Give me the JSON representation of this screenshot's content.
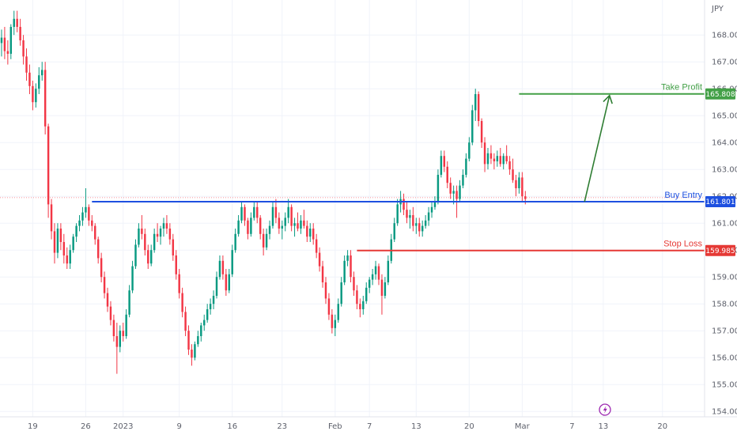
{
  "chart_data": {
    "type": "candlestick",
    "currency": "JPY",
    "ylim": [
      153.8,
      169.3
    ],
    "y_ticks": [
      154,
      155,
      156,
      157,
      158,
      159,
      160,
      161,
      162,
      163,
      164,
      165,
      166,
      167,
      168
    ],
    "y_tick_labels": [
      "154.000",
      "155.000",
      "156.000",
      "157.000",
      "158.000",
      "159.000",
      "160.000",
      "161.000",
      "162.000",
      "163.000",
      "164.000",
      "165.000",
      "166.000",
      "167.000",
      "168.000"
    ],
    "x_tick_labels": [
      "19",
      "26",
      "2023",
      "9",
      "16",
      "23",
      "Feb",
      "7",
      "13",
      "20",
      "Mar",
      "7",
      "13",
      "20"
    ],
    "x_tick_index": [
      10,
      27,
      39,
      57,
      74,
      90,
      107,
      118,
      133,
      150,
      167,
      183,
      193,
      212
    ],
    "x_slots": 226,
    "up_color": "#089981",
    "down_color": "#f23645",
    "candles": [
      [
        167.7,
        168.2,
        167.2,
        167.9
      ],
      [
        167.9,
        168.3,
        167.1,
        167.4
      ],
      [
        167.4,
        167.8,
        166.9,
        167.3
      ],
      [
        167.3,
        168.4,
        167.1,
        168.3
      ],
      [
        168.3,
        168.9,
        168.0,
        168.6
      ],
      [
        168.6,
        168.9,
        168.1,
        168.3
      ],
      [
        168.3,
        168.6,
        167.6,
        167.8
      ],
      [
        167.8,
        168.0,
        166.9,
        167.2
      ],
      [
        167.2,
        167.5,
        166.3,
        166.6
      ],
      [
        166.6,
        166.9,
        165.8,
        166.1
      ],
      [
        166.1,
        166.3,
        165.2,
        165.5
      ],
      [
        165.5,
        166.2,
        165.3,
        166.0
      ],
      [
        166.0,
        166.8,
        165.8,
        166.5
      ],
      [
        166.5,
        167.0,
        166.3,
        166.7
      ],
      [
        166.7,
        167.0,
        164.3,
        164.6
      ],
      [
        164.6,
        164.7,
        161.2,
        161.7
      ],
      [
        161.7,
        161.9,
        160.4,
        160.7
      ],
      [
        160.7,
        161.0,
        159.5,
        159.9
      ],
      [
        159.9,
        161.0,
        159.7,
        160.8
      ],
      [
        160.8,
        161.0,
        160.0,
        160.3
      ],
      [
        160.3,
        160.6,
        159.5,
        159.8
      ],
      [
        159.8,
        160.1,
        159.3,
        159.5
      ],
      [
        159.5,
        160.2,
        159.3,
        160.0
      ],
      [
        160.0,
        160.6,
        159.9,
        160.5
      ],
      [
        160.5,
        161.0,
        160.3,
        160.9
      ],
      [
        160.9,
        161.3,
        160.7,
        161.1
      ],
      [
        161.1,
        161.6,
        160.9,
        161.4
      ],
      [
        161.4,
        162.3,
        161.2,
        161.6
      ],
      [
        161.6,
        161.7,
        160.9,
        161.1
      ],
      [
        161.1,
        161.3,
        160.7,
        160.9
      ],
      [
        160.9,
        161.0,
        160.2,
        160.4
      ],
      [
        160.4,
        160.5,
        159.5,
        159.7
      ],
      [
        159.7,
        159.9,
        158.8,
        159.0
      ],
      [
        159.0,
        159.2,
        158.2,
        158.4
      ],
      [
        158.4,
        158.6,
        157.7,
        157.9
      ],
      [
        157.9,
        158.1,
        157.2,
        157.4
      ],
      [
        157.4,
        157.6,
        156.6,
        156.8
      ],
      [
        156.8,
        157.3,
        155.4,
        156.4
      ],
      [
        156.4,
        157.2,
        156.2,
        157.0
      ],
      [
        157.0,
        157.3,
        156.6,
        156.8
      ],
      [
        156.8,
        157.8,
        156.7,
        157.6
      ],
      [
        157.6,
        158.7,
        157.5,
        158.5
      ],
      [
        158.5,
        159.6,
        158.4,
        159.4
      ],
      [
        159.4,
        160.4,
        159.3,
        160.2
      ],
      [
        160.2,
        161.0,
        160.1,
        160.8
      ],
      [
        160.8,
        161.3,
        160.4,
        160.6
      ],
      [
        160.6,
        160.8,
        159.8,
        160.0
      ],
      [
        160.0,
        160.2,
        159.3,
        159.5
      ],
      [
        159.5,
        160.2,
        159.4,
        160.0
      ],
      [
        160.0,
        160.8,
        159.9,
        160.6
      ],
      [
        160.6,
        161.0,
        160.3,
        160.5
      ],
      [
        160.5,
        160.9,
        160.2,
        160.8
      ],
      [
        160.8,
        161.2,
        160.5,
        161.0
      ],
      [
        161.0,
        161.3,
        160.6,
        160.8
      ],
      [
        160.8,
        161.0,
        160.2,
        160.4
      ],
      [
        160.4,
        160.6,
        159.6,
        159.8
      ],
      [
        159.8,
        160.0,
        158.9,
        159.1
      ],
      [
        159.1,
        159.3,
        158.2,
        158.4
      ],
      [
        158.4,
        158.6,
        157.5,
        157.7
      ],
      [
        157.7,
        157.9,
        156.8,
        157.0
      ],
      [
        157.0,
        157.2,
        156.1,
        156.3
      ],
      [
        156.3,
        156.5,
        155.7,
        156.0
      ],
      [
        156.0,
        156.6,
        155.9,
        156.5
      ],
      [
        156.5,
        157.0,
        156.4,
        156.8
      ],
      [
        156.8,
        157.3,
        156.6,
        157.2
      ],
      [
        157.2,
        157.6,
        157.0,
        157.4
      ],
      [
        157.4,
        158.0,
        157.3,
        157.8
      ],
      [
        157.8,
        158.2,
        157.6,
        158.0
      ],
      [
        158.0,
        158.5,
        157.8,
        158.3
      ],
      [
        158.3,
        159.2,
        158.2,
        159.0
      ],
      [
        159.0,
        159.8,
        158.9,
        159.6
      ],
      [
        159.6,
        159.8,
        158.9,
        159.1
      ],
      [
        159.1,
        159.3,
        158.3,
        158.5
      ],
      [
        158.5,
        159.3,
        158.4,
        159.1
      ],
      [
        159.1,
        160.2,
        159.0,
        160.0
      ],
      [
        160.0,
        160.8,
        159.9,
        160.6
      ],
      [
        160.6,
        161.3,
        160.5,
        161.1
      ],
      [
        161.1,
        161.8,
        161.0,
        161.6
      ],
      [
        161.6,
        161.7,
        160.9,
        161.1
      ],
      [
        161.1,
        161.2,
        160.4,
        160.6
      ],
      [
        160.6,
        161.4,
        160.5,
        161.2
      ],
      [
        161.2,
        161.8,
        161.1,
        161.6
      ],
      [
        161.6,
        161.8,
        161.0,
        161.2
      ],
      [
        161.2,
        161.3,
        160.4,
        160.6
      ],
      [
        160.6,
        160.8,
        159.8,
        160.1
      ],
      [
        160.1,
        160.8,
        160.0,
        160.6
      ],
      [
        160.6,
        161.1,
        160.4,
        160.9
      ],
      [
        160.9,
        161.8,
        160.8,
        161.6
      ],
      [
        161.6,
        161.9,
        161.0,
        161.2
      ],
      [
        161.2,
        161.4,
        160.6,
        160.8
      ],
      [
        160.8,
        161.1,
        160.4,
        160.9
      ],
      [
        160.9,
        161.4,
        160.7,
        161.2
      ],
      [
        161.2,
        161.9,
        161.0,
        161.6
      ],
      [
        161.6,
        161.7,
        160.7,
        160.9
      ],
      [
        160.9,
        161.2,
        160.5,
        161.0
      ],
      [
        161.0,
        161.4,
        160.7,
        160.8
      ],
      [
        160.8,
        161.3,
        160.6,
        161.1
      ],
      [
        161.1,
        161.5,
        160.8,
        160.9
      ],
      [
        160.9,
        161.1,
        160.3,
        160.5
      ],
      [
        160.5,
        161.0,
        160.3,
        160.8
      ],
      [
        160.8,
        161.0,
        160.2,
        160.4
      ],
      [
        160.4,
        160.6,
        159.7,
        159.9
      ],
      [
        159.9,
        160.1,
        159.2,
        159.4
      ],
      [
        159.4,
        159.6,
        158.6,
        158.8
      ],
      [
        158.8,
        159.0,
        158.0,
        158.2
      ],
      [
        158.2,
        158.4,
        157.4,
        157.6
      ],
      [
        157.6,
        157.8,
        156.9,
        157.1
      ],
      [
        157.1,
        157.6,
        156.8,
        157.4
      ],
      [
        157.4,
        158.2,
        157.3,
        158.0
      ],
      [
        158.0,
        159.0,
        157.9,
        158.8
      ],
      [
        158.8,
        159.8,
        158.7,
        159.6
      ],
      [
        159.6,
        160.0,
        159.4,
        159.8
      ],
      [
        159.8,
        160.0,
        158.8,
        159.0
      ],
      [
        159.0,
        159.2,
        158.3,
        158.5
      ],
      [
        158.5,
        158.7,
        157.8,
        158.0
      ],
      [
        158.0,
        158.2,
        157.5,
        157.8
      ],
      [
        157.8,
        158.3,
        157.6,
        158.1
      ],
      [
        158.1,
        158.8,
        158.0,
        158.6
      ],
      [
        158.6,
        159.0,
        158.4,
        158.9
      ],
      [
        158.9,
        159.3,
        158.7,
        159.1
      ],
      [
        159.1,
        159.6,
        158.9,
        159.4
      ],
      [
        159.4,
        159.5,
        158.7,
        158.9
      ],
      [
        158.9,
        159.1,
        157.6,
        158.3
      ],
      [
        158.3,
        159.0,
        158.2,
        158.8
      ],
      [
        158.8,
        159.8,
        158.7,
        159.6
      ],
      [
        159.6,
        160.6,
        159.5,
        160.4
      ],
      [
        160.4,
        161.2,
        160.3,
        161.0
      ],
      [
        161.0,
        161.9,
        160.9,
        161.7
      ],
      [
        161.7,
        162.2,
        161.4,
        161.9
      ],
      [
        161.9,
        162.1,
        161.3,
        161.5
      ],
      [
        161.5,
        161.8,
        161.0,
        161.2
      ],
      [
        161.2,
        161.5,
        160.8,
        161.3
      ],
      [
        161.3,
        161.6,
        160.7,
        160.9
      ],
      [
        160.9,
        161.2,
        160.6,
        161.0
      ],
      [
        161.0,
        161.2,
        160.5,
        160.7
      ],
      [
        160.7,
        161.1,
        160.5,
        160.9
      ],
      [
        160.9,
        161.3,
        160.8,
        161.1
      ],
      [
        161.1,
        161.6,
        160.9,
        161.4
      ],
      [
        161.4,
        161.8,
        161.2,
        161.6
      ],
      [
        161.6,
        162.0,
        161.5,
        161.8
      ],
      [
        161.8,
        163.0,
        161.7,
        162.8
      ],
      [
        162.8,
        163.7,
        162.7,
        163.5
      ],
      [
        163.5,
        163.7,
        162.9,
        163.1
      ],
      [
        163.1,
        163.3,
        162.3,
        162.5
      ],
      [
        162.5,
        162.7,
        161.9,
        162.1
      ],
      [
        162.1,
        162.4,
        161.7,
        162.2
      ],
      [
        162.2,
        162.4,
        161.2,
        161.9
      ],
      [
        161.9,
        162.6,
        161.8,
        162.4
      ],
      [
        162.4,
        163.0,
        162.3,
        162.8
      ],
      [
        162.8,
        163.6,
        162.7,
        163.4
      ],
      [
        163.4,
        164.2,
        163.3,
        164.0
      ],
      [
        164.0,
        165.4,
        163.9,
        165.2
      ],
      [
        165.2,
        166.0,
        164.8,
        165.8
      ],
      [
        165.8,
        165.9,
        164.6,
        164.8
      ],
      [
        164.8,
        164.9,
        163.8,
        164.0
      ],
      [
        164.0,
        164.2,
        162.9,
        163.2
      ],
      [
        163.2,
        163.8,
        163.0,
        163.6
      ],
      [
        163.6,
        163.9,
        163.2,
        163.4
      ],
      [
        163.4,
        163.6,
        163.0,
        163.3
      ],
      [
        163.3,
        163.7,
        163.1,
        163.5
      ],
      [
        163.5,
        163.8,
        163.1,
        163.2
      ],
      [
        163.2,
        163.6,
        163.0,
        163.5
      ],
      [
        163.5,
        163.9,
        163.2,
        163.3
      ],
      [
        163.3,
        163.5,
        162.8,
        163.0
      ],
      [
        163.0,
        163.4,
        162.5,
        162.6
      ],
      [
        162.6,
        162.8,
        162.0,
        162.3
      ],
      [
        162.3,
        162.9,
        162.1,
        162.7
      ],
      [
        162.7,
        162.9,
        161.8,
        162.0
      ],
      [
        162.0,
        162.2,
        161.7,
        161.9
      ]
    ],
    "levels": [
      {
        "name": "Take Profit",
        "value": 165.808,
        "label": "165.808",
        "color": "#43a047",
        "from_index": 166
      },
      {
        "name": "Buy Entry",
        "value": 161.801,
        "label": "161.801",
        "color": "#1e50e0",
        "from_index": 29
      },
      {
        "name": "Stop Loss",
        "value": 159.985,
        "label": "159.985",
        "color": "#e53935",
        "from_index": 114
      }
    ],
    "arrow": {
      "from_index": 187,
      "from_value": 161.8,
      "to_index": 195,
      "to_value": 165.75,
      "color": "#2e7d32"
    },
    "current_price_line": 161.95,
    "grid": true
  }
}
